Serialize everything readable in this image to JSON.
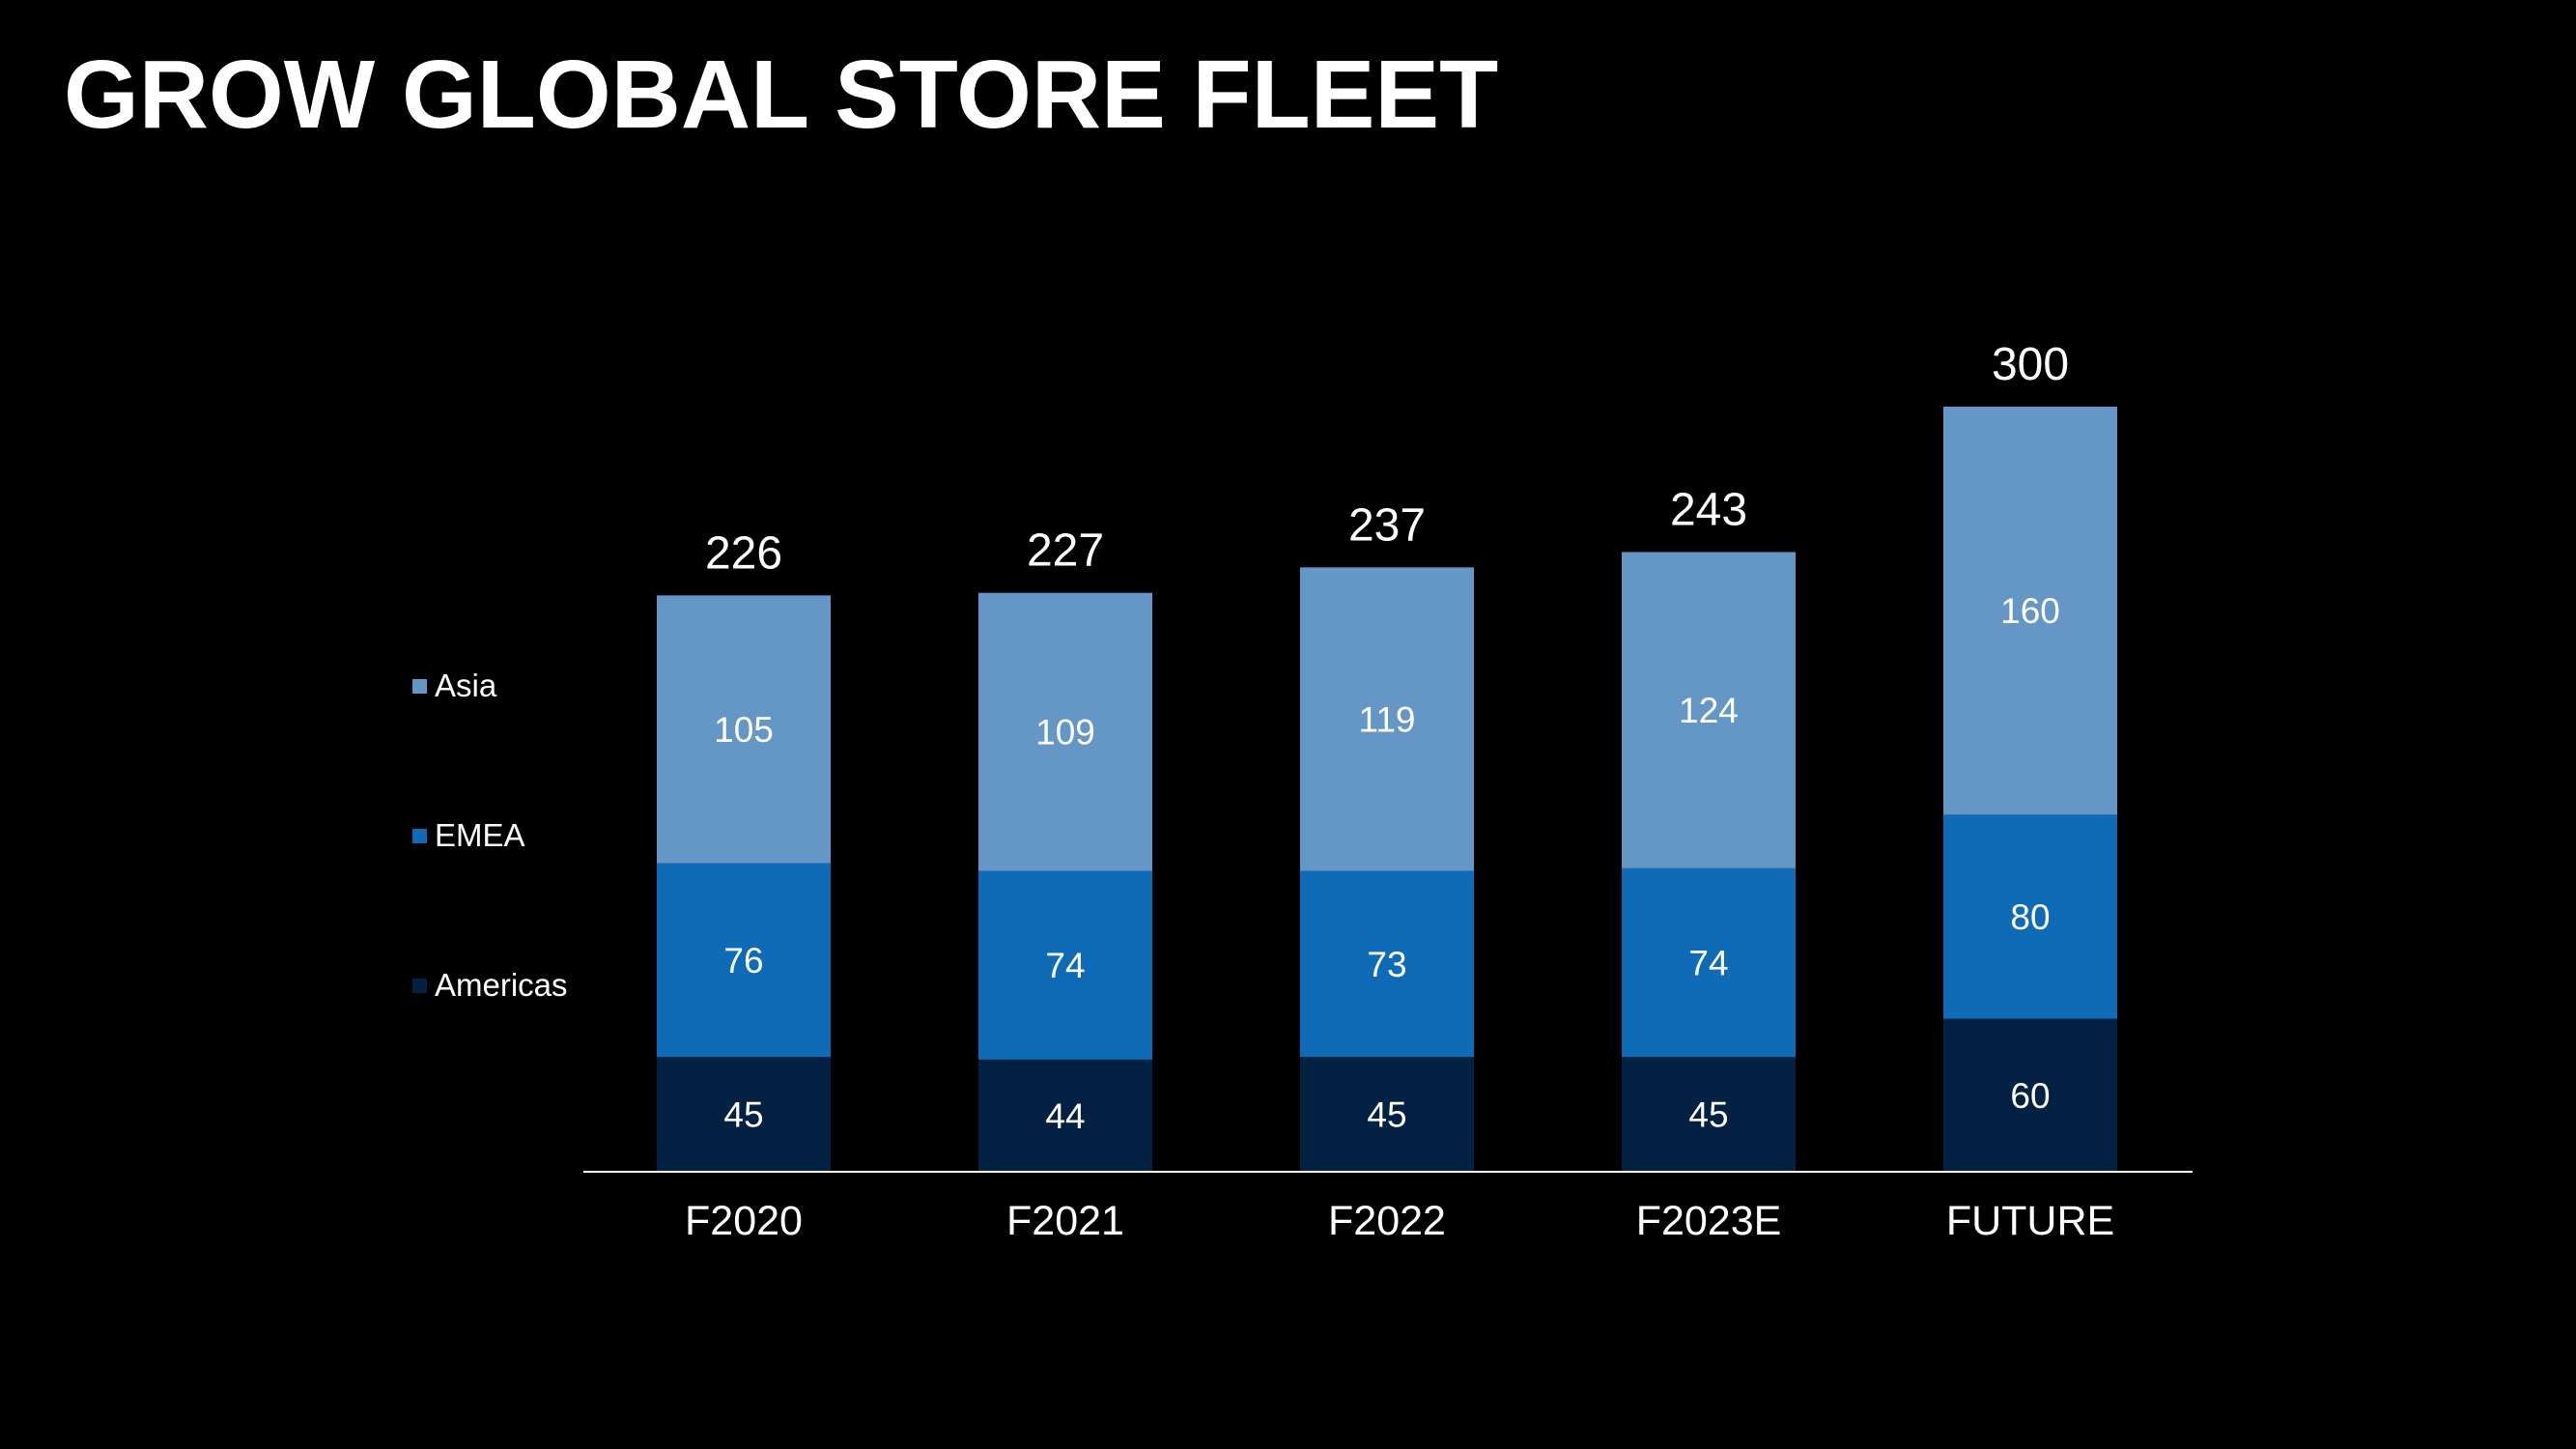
{
  "page": {
    "title": "GROW GLOBAL STORE FLEET"
  },
  "colors": {
    "background": "#000000",
    "text": "#ffffff",
    "americas": "#032142",
    "emea": "#106bb6",
    "asia": "#6597c6",
    "axis": "#ffffff"
  },
  "chart_data": {
    "type": "bar",
    "stacked": true,
    "title": "GROW GLOBAL STORE FLEET",
    "xlabel": "",
    "ylabel": "",
    "categories": [
      "F2020",
      "F2021",
      "F2022",
      "F2023E",
      "FUTURE"
    ],
    "series": [
      {
        "name": "Americas",
        "color": "#032142",
        "values": [
          45,
          44,
          45,
          45,
          60
        ]
      },
      {
        "name": "EMEA",
        "color": "#106bb6",
        "values": [
          76,
          74,
          73,
          74,
          80
        ]
      },
      {
        "name": "Asia",
        "color": "#6597c6",
        "values": [
          105,
          109,
          119,
          124,
          160
        ]
      }
    ],
    "totals": [
      226,
      227,
      237,
      243,
      300
    ],
    "ylim": [
      0,
      300
    ],
    "grid": false,
    "legend": {
      "position": "left",
      "order": [
        "Asia",
        "EMEA",
        "Americas"
      ]
    }
  }
}
